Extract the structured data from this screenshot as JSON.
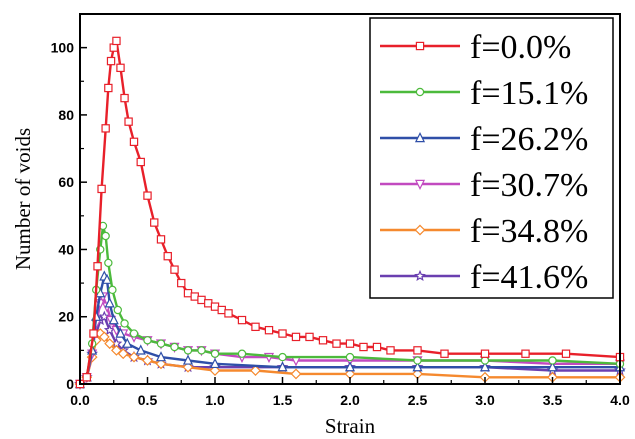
{
  "chart_data": {
    "type": "line",
    "xlabel": "Strain",
    "ylabel": "Number of voids",
    "xlim": [
      0,
      4.0
    ],
    "ylim": [
      0,
      110
    ],
    "xticks": [
      "0.0",
      "0.5",
      "1.0",
      "1.5",
      "2.0",
      "2.5",
      "3.0",
      "3.5",
      "4.0"
    ],
    "yticks": [
      "0",
      "20",
      "40",
      "60",
      "80",
      "100"
    ],
    "grid": false,
    "legend_position": "top-right",
    "series": [
      {
        "name": "f=0.0%",
        "color": "#e8202a",
        "marker": "square",
        "points": [
          [
            0,
            0
          ],
          [
            0.05,
            2
          ],
          [
            0.1,
            15
          ],
          [
            0.13,
            35
          ],
          [
            0.16,
            58
          ],
          [
            0.19,
            76
          ],
          [
            0.21,
            88
          ],
          [
            0.23,
            96
          ],
          [
            0.25,
            100
          ],
          [
            0.27,
            102
          ],
          [
            0.3,
            94
          ],
          [
            0.33,
            85
          ],
          [
            0.36,
            78
          ],
          [
            0.4,
            72
          ],
          [
            0.45,
            66
          ],
          [
            0.5,
            56
          ],
          [
            0.55,
            48
          ],
          [
            0.6,
            43
          ],
          [
            0.65,
            38
          ],
          [
            0.7,
            34
          ],
          [
            0.75,
            30
          ],
          [
            0.8,
            27
          ],
          [
            0.85,
            26
          ],
          [
            0.9,
            25
          ],
          [
            0.95,
            24
          ],
          [
            1.0,
            23
          ],
          [
            1.05,
            22
          ],
          [
            1.1,
            21
          ],
          [
            1.2,
            19
          ],
          [
            1.3,
            17
          ],
          [
            1.4,
            16
          ],
          [
            1.5,
            15
          ],
          [
            1.6,
            14
          ],
          [
            1.7,
            14
          ],
          [
            1.8,
            13
          ],
          [
            1.9,
            12
          ],
          [
            2.0,
            12
          ],
          [
            2.1,
            11
          ],
          [
            2.2,
            11
          ],
          [
            2.3,
            10
          ],
          [
            2.5,
            10
          ],
          [
            2.7,
            9
          ],
          [
            3.0,
            9
          ],
          [
            3.3,
            9
          ],
          [
            3.6,
            9
          ],
          [
            4.0,
            8
          ]
        ]
      },
      {
        "name": "f=15.1%",
        "color": "#4cba3c",
        "marker": "circle",
        "points": [
          [
            0,
            0
          ],
          [
            0.05,
            2
          ],
          [
            0.09,
            12
          ],
          [
            0.12,
            28
          ],
          [
            0.15,
            40
          ],
          [
            0.17,
            47
          ],
          [
            0.19,
            44
          ],
          [
            0.21,
            36
          ],
          [
            0.24,
            28
          ],
          [
            0.28,
            22
          ],
          [
            0.33,
            18
          ],
          [
            0.4,
            15
          ],
          [
            0.5,
            13
          ],
          [
            0.6,
            12
          ],
          [
            0.7,
            11
          ],
          [
            0.8,
            10
          ],
          [
            0.9,
            10
          ],
          [
            1.0,
            9
          ],
          [
            1.2,
            9
          ],
          [
            1.5,
            8
          ],
          [
            2.0,
            8
          ],
          [
            2.5,
            7
          ],
          [
            3.0,
            7
          ],
          [
            3.5,
            7
          ],
          [
            4.0,
            6
          ]
        ]
      },
      {
        "name": "f=26.2%",
        "color": "#2f4fa8",
        "marker": "triangle-up",
        "points": [
          [
            0,
            0
          ],
          [
            0.05,
            2
          ],
          [
            0.09,
            10
          ],
          [
            0.12,
            20
          ],
          [
            0.15,
            27
          ],
          [
            0.18,
            32
          ],
          [
            0.2,
            31
          ],
          [
            0.22,
            24
          ],
          [
            0.25,
            19
          ],
          [
            0.3,
            15
          ],
          [
            0.35,
            12
          ],
          [
            0.45,
            10
          ],
          [
            0.6,
            8
          ],
          [
            0.8,
            7
          ],
          [
            1.0,
            6
          ],
          [
            1.5,
            5
          ],
          [
            2.0,
            5
          ],
          [
            2.5,
            5
          ],
          [
            3.0,
            5
          ],
          [
            3.5,
            5
          ],
          [
            4.0,
            5
          ]
        ]
      },
      {
        "name": "f=30.7%",
        "color": "#c24ac0",
        "marker": "triangle-down",
        "points": [
          [
            0,
            0
          ],
          [
            0.05,
            2
          ],
          [
            0.09,
            9
          ],
          [
            0.12,
            18
          ],
          [
            0.15,
            24
          ],
          [
            0.17,
            26
          ],
          [
            0.2,
            23
          ],
          [
            0.23,
            19
          ],
          [
            0.27,
            16
          ],
          [
            0.32,
            15
          ],
          [
            0.4,
            14
          ],
          [
            0.5,
            13
          ],
          [
            0.6,
            12
          ],
          [
            0.7,
            11
          ],
          [
            0.8,
            10
          ],
          [
            0.9,
            10
          ],
          [
            1.0,
            9
          ],
          [
            1.2,
            8
          ],
          [
            1.4,
            8
          ],
          [
            1.6,
            7
          ],
          [
            2.0,
            7
          ],
          [
            2.5,
            7
          ],
          [
            3.0,
            7
          ],
          [
            3.5,
            6
          ],
          [
            4.0,
            6
          ]
        ]
      },
      {
        "name": "f=34.8%",
        "color": "#f5892e",
        "marker": "diamond",
        "points": [
          [
            0,
            0
          ],
          [
            0.05,
            2
          ],
          [
            0.09,
            8
          ],
          [
            0.12,
            13
          ],
          [
            0.15,
            15
          ],
          [
            0.18,
            14
          ],
          [
            0.22,
            12
          ],
          [
            0.27,
            10
          ],
          [
            0.32,
            9
          ],
          [
            0.4,
            8
          ],
          [
            0.5,
            7
          ],
          [
            0.6,
            6
          ],
          [
            0.8,
            5
          ],
          [
            1.0,
            4
          ],
          [
            1.3,
            4
          ],
          [
            1.6,
            3
          ],
          [
            2.0,
            3
          ],
          [
            2.5,
            3
          ],
          [
            3.0,
            2
          ],
          [
            3.5,
            2
          ],
          [
            4.0,
            2
          ]
        ]
      },
      {
        "name": "f=41.6%",
        "color": "#6a3fb0",
        "marker": "star",
        "points": [
          [
            0,
            0
          ],
          [
            0.05,
            2
          ],
          [
            0.09,
            9
          ],
          [
            0.12,
            15
          ],
          [
            0.15,
            19
          ],
          [
            0.18,
            20
          ],
          [
            0.22,
            16
          ],
          [
            0.27,
            12
          ],
          [
            0.32,
            10
          ],
          [
            0.4,
            8
          ],
          [
            0.5,
            7
          ],
          [
            0.6,
            6
          ],
          [
            0.8,
            5
          ],
          [
            1.0,
            5
          ],
          [
            1.5,
            5
          ],
          [
            2.0,
            5
          ],
          [
            2.5,
            5
          ],
          [
            3.0,
            5
          ],
          [
            3.5,
            4
          ],
          [
            4.0,
            4
          ]
        ]
      }
    ]
  }
}
